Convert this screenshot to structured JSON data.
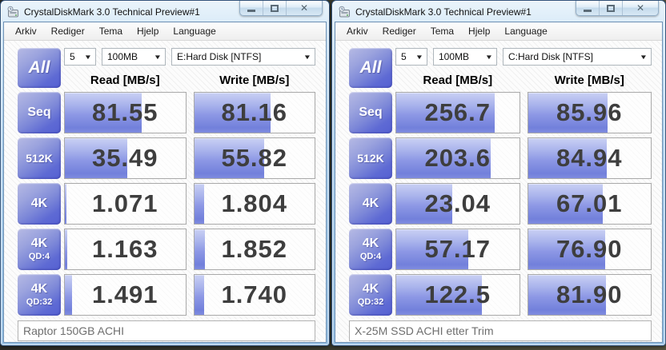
{
  "icons": {
    "close_glyph": "✕",
    "dropdown_glyph": "▼"
  },
  "colors": {
    "gauge_fill": "#8d98e5",
    "label_button_blue": "#5e6ad4",
    "aero_border": "#9dc4e6",
    "value_text": "#3e3e3e"
  },
  "windows": [
    {
      "title": "CrystalDiskMark 3.0 Technical Preview#1",
      "menu": [
        "Arkiv",
        "Rediger",
        "Tema",
        "Hjelp",
        "Language"
      ],
      "all_button": "All",
      "run_count": "5",
      "test_size": "100MB",
      "drive": "E:Hard Disk [NTFS]",
      "read_header": "Read [MB/s]",
      "write_header": "Write [MB/s]",
      "rows": [
        {
          "label": "Seq",
          "sublabel": "",
          "read": "81.55",
          "write": "81.16"
        },
        {
          "label": "512K",
          "sublabel": "",
          "read": "35.49",
          "write": "55.82"
        },
        {
          "label": "4K",
          "sublabel": "",
          "read": "1.071",
          "write": "1.804"
        },
        {
          "label": "4K",
          "sublabel": "QD:4",
          "read": "1.163",
          "write": "1.852"
        },
        {
          "label": "4K",
          "sublabel": "QD:32",
          "read": "1.491",
          "write": "1.740"
        }
      ],
      "comment": "Raptor 150GB ACHI"
    },
    {
      "title": "CrystalDiskMark 3.0 Technical Preview#1",
      "menu": [
        "Arkiv",
        "Rediger",
        "Tema",
        "Hjelp",
        "Language"
      ],
      "all_button": "All",
      "run_count": "5",
      "test_size": "100MB",
      "drive": "C:Hard Disk [NTFS]",
      "read_header": "Read [MB/s]",
      "write_header": "Write [MB/s]",
      "rows": [
        {
          "label": "Seq",
          "sublabel": "",
          "read": "256.7",
          "write": "85.96"
        },
        {
          "label": "512K",
          "sublabel": "",
          "read": "203.6",
          "write": "84.94"
        },
        {
          "label": "4K",
          "sublabel": "",
          "read": "23.04",
          "write": "67.01"
        },
        {
          "label": "4K",
          "sublabel": "QD:4",
          "read": "57.17",
          "write": "76.90"
        },
        {
          "label": "4K",
          "sublabel": "QD:32",
          "read": "122.5",
          "write": "81.90"
        }
      ],
      "comment": "X-25M SSD ACHI etter Trim"
    }
  ]
}
